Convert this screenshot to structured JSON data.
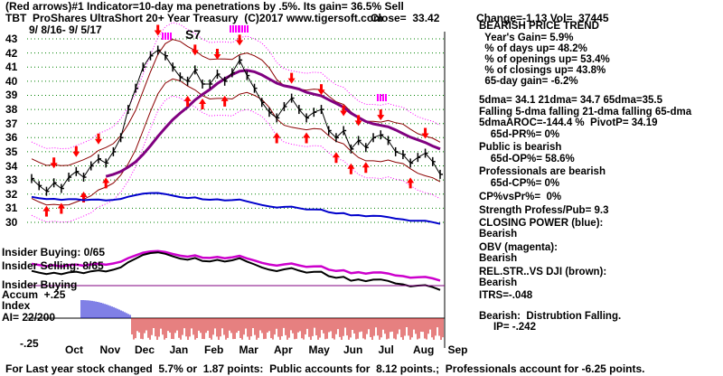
{
  "header": {
    "line1": "(Red arrows)#1 Indicator=10-day ma penetrations by .5%. Its gain= 36.5% Sell",
    "symbol": "TBT",
    "title": "ProShares UltraShort 20+ Year Treasury  (C)2017 www.tigersoft.com",
    "close_label": "Close=  33.42",
    "change_label": "Change=-1.13 Vol=  37445",
    "date_range": "9/ 8/16- 9/ 5/17"
  },
  "right_panel": {
    "lines": [
      "BEARISH PRICE TREND",
      "  Year's Gain= 5.9%",
      "  % of days up= 48.2%",
      "  % of openings up= 53.4%",
      "  % of closings up= 43.8%",
      "  65-day gain= -6.2%",
      "5dma= 34.1 21dma= 34.7 65dma=35.5",
      "Falling 5-dma falling 21-dma falling 65-dma",
      "5dmaAROC=-144.4 %  PivotP= 34.19",
      "    65d-PR%= 0%",
      "Public is bearish",
      "    65d-OP%= 58.6%",
      "Professionals are bearish",
      "    65d-CP%= 0%",
      "CP%vsPr%=  0%",
      "Strength Profess/Pub= 9.3",
      "CLOSING POWER (blue):",
      "Bearish",
      "OBV (magenta):",
      "Bearish",
      "REL.STR..VS DJI (brown):",
      "Bearish",
      "ITRS=-.048",
      "Bearish:  Distrubtion Falling.",
      "     IP= -.242"
    ]
  },
  "left_labels": {
    "insider_buying": "Insider Buying: 0/65",
    "insider_selling": "Insider Selling: 8/65",
    "accum1": "Insider Buying",
    "accum2": "Accum  +.25",
    "accum3": "Index",
    "ai": "AI= 22/200",
    "minus": "-.25"
  },
  "annotation_s7": "S7",
  "footer": "For Last year stock changed  5.7% or  1.87 points:  Public accounts for  8.12 points.;  Professionals account for -6.25 points.",
  "colors": {
    "price": "#000000",
    "ma65": "#800080",
    "bands": "#8b0000",
    "closing_power": "#0000cc",
    "obv": "#cc00cc",
    "rel_str": "#8b4513",
    "accum_pos": "#0000cc",
    "accum_neg": "#cc0000",
    "grid": "#008000",
    "arrows": "#ff0000",
    "magenta_marks": "#ff00ff"
  },
  "chart_data": {
    "type": "line",
    "yticks": [
      30,
      31,
      32,
      33,
      34,
      35,
      36,
      37,
      38,
      39,
      40,
      41,
      42,
      43
    ],
    "ylim": [
      29.5,
      43.2
    ],
    "months": [
      "Oct",
      "Nov",
      "Dec",
      "Jan",
      "Feb",
      "Mar",
      "Apr",
      "May",
      "Jun",
      "Jul",
      "Aug",
      "Sep"
    ],
    "series": [
      {
        "name": "TBT",
        "values": [
          33.1,
          32.6,
          32.2,
          32.8,
          32.4,
          33.2,
          33.6,
          33.2,
          34.0,
          34.5,
          34.2,
          35.0,
          36.0,
          38.0,
          39.5,
          41.0,
          41.8,
          42.2,
          41.8,
          41.0,
          40.3,
          40.0,
          40.8,
          39.8,
          39.8,
          40.5,
          40.0,
          40.6,
          41.5,
          40.4,
          39.5,
          38.5,
          37.8,
          37.4,
          38.2,
          38.8,
          38.0,
          37.4,
          37.8,
          38.0,
          36.5,
          36.0,
          36.5,
          35.2,
          35.8,
          35.3,
          36.0,
          36.2,
          35.8,
          35.0,
          34.8,
          34.2,
          34.6,
          34.9,
          34.3,
          33.4
        ]
      }
    ]
  }
}
